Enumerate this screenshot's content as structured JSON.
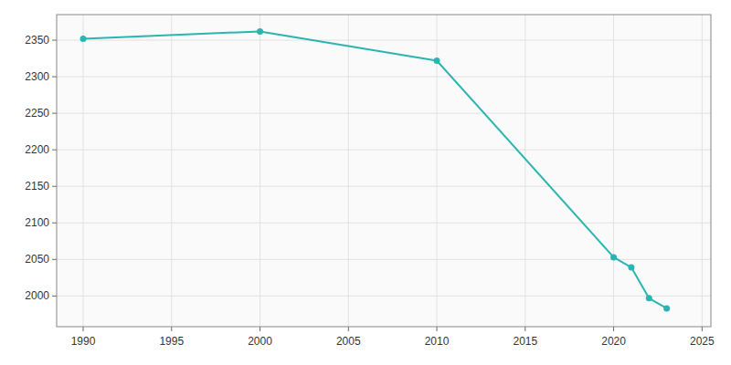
{
  "chart_data": {
    "type": "line",
    "x": [
      1990,
      2000,
      2010,
      2020,
      2021,
      2022,
      2023
    ],
    "values": [
      2352,
      2362,
      2322,
      2053,
      2039,
      1997,
      1983
    ],
    "color": "#2ab5b0",
    "marker": "circle",
    "xlim": [
      1988.5,
      2025.5
    ],
    "ylim": [
      1958,
      2385
    ],
    "xticks": [
      1990,
      1995,
      2000,
      2005,
      2010,
      2015,
      2020,
      2025
    ],
    "yticks": [
      2000,
      2050,
      2100,
      2150,
      2200,
      2250,
      2300,
      2350
    ],
    "grid": true
  }
}
